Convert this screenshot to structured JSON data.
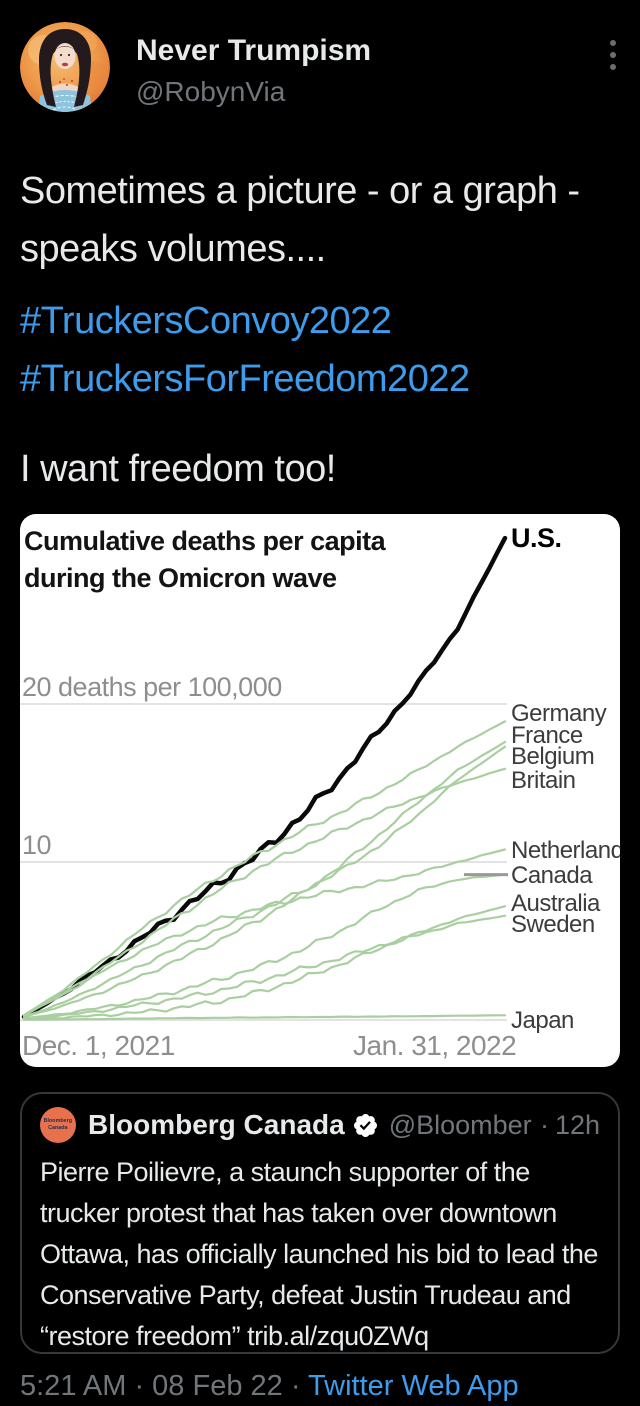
{
  "header": {
    "name": "Never Trumpism",
    "handle": "@RobynVia"
  },
  "tweet": {
    "text_line": "Sometimes a picture - or a graph - speaks volumes....",
    "hashtags": [
      "#TruckersConvoy2022",
      "#TruckersForFreedom2022"
    ],
    "closing_line": "I want freedom too!"
  },
  "quote": {
    "name": "Bloomberg Canada",
    "handle": "@Bloomberg…",
    "separator": "·",
    "time": "12h",
    "avatar_line1": "Bloomberg",
    "avatar_line2": "Canada",
    "text": "Pierre Poilievre, a staunch supporter of the trucker protest that has taken over downtown Ottawa, has officially launched his bid to lead the Conservative Party, defeat Justin Trudeau and “restore freedom” trib.al/zqu0ZWq"
  },
  "footer": {
    "meta": "5:21 AM · 08 Feb 22 ·",
    "source_link": "Twitter Web App"
  },
  "colors": {
    "background": "#000000",
    "text_primary": "#e7e9ea",
    "text_secondary": "#71767b",
    "link_blue": "#3d9ceb",
    "card_border": "#33383c",
    "chart_background": "#ffffff",
    "chart_green": "#a9cfa0",
    "chart_black": "#0a0a0a",
    "chart_gridline": "#e3e3e3",
    "chart_axis_text": "#8e8e8e",
    "chart_label_text": "#3c3c3c",
    "quote_avatar_orange": "#e8714d"
  },
  "chart_data": {
    "type": "line",
    "title_lines": [
      "Cumulative deaths per capita",
      "during the Omicron wave"
    ],
    "title": "Cumulative deaths per capita during the Omicron wave",
    "unit_axis_label": "20 deaths per 100,000",
    "mid_axis_label": "10",
    "x_axis_labels": [
      "Dec. 1, 2021",
      "Jan. 31, 2022"
    ],
    "x_range_days": [
      0,
      61
    ],
    "ylim": [
      0,
      32
    ],
    "gridline_values": [
      0,
      10,
      20
    ],
    "grid": "horizontal-only",
    "legend_position": "right-end-labels",
    "ylabel": "cumulative deaths per 100,000",
    "days": [
      0,
      5,
      10,
      15,
      20,
      25,
      30,
      35,
      40,
      45,
      50,
      55,
      61
    ],
    "series": [
      {
        "name": "U.S.",
        "color": "#0a0a0a",
        "width": 4.5,
        "bold_label": true,
        "values": [
          0.2,
          1.7,
          3.4,
          5.2,
          7.0,
          8.8,
          10.6,
          12.8,
          15.3,
          18.3,
          21.3,
          24.8,
          30.5
        ]
      },
      {
        "name": "Germany",
        "color": "#a9cfa0",
        "width": 2.2,
        "values": [
          0.3,
          1.9,
          3.8,
          5.8,
          7.6,
          9.2,
          10.6,
          11.9,
          13.1,
          14.4,
          15.8,
          17.3,
          18.9
        ]
      },
      {
        "name": "France",
        "color": "#a9cfa0",
        "width": 2.2,
        "values": [
          0.2,
          0.9,
          1.8,
          2.8,
          3.9,
          5.1,
          6.4,
          7.9,
          9.7,
          11.7,
          13.8,
          15.8,
          17.6
        ]
      },
      {
        "name": "Belgium",
        "color": "#a9cfa0",
        "width": 2.2,
        "values": [
          0.2,
          1.1,
          2.3,
          3.5,
          4.7,
          5.8,
          6.9,
          8.1,
          9.4,
          11.0,
          13.0,
          15.2,
          17.3
        ]
      },
      {
        "name": "Britain",
        "color": "#a9cfa0",
        "width": 2.2,
        "values": [
          0.3,
          1.7,
          3.3,
          5.0,
          6.7,
          8.3,
          9.7,
          10.9,
          12.0,
          13.1,
          14.1,
          15.0,
          15.9
        ]
      },
      {
        "name": "Netherlands",
        "color": "#a9cfa0",
        "width": 2.2,
        "values": [
          0.3,
          1.6,
          3.1,
          4.4,
          5.5,
          6.4,
          7.1,
          7.7,
          8.2,
          8.7,
          9.3,
          10.0,
          10.8
        ]
      },
      {
        "name": "Canada",
        "color": "#a9cfa0",
        "width": 2.2,
        "leader_line": true,
        "values": [
          0.1,
          0.4,
          0.8,
          1.3,
          1.9,
          2.6,
          3.4,
          4.4,
          5.6,
          7.0,
          8.2,
          8.9,
          9.2
        ]
      },
      {
        "name": "Australia",
        "color": "#a9cfa0",
        "width": 2.2,
        "values": [
          0.05,
          0.15,
          0.3,
          0.5,
          0.8,
          1.2,
          1.8,
          2.6,
          3.5,
          4.5,
          5.5,
          6.4,
          7.2
        ]
      },
      {
        "name": "Sweden",
        "color": "#a9cfa0",
        "width": 2.2,
        "values": [
          0.1,
          0.3,
          0.6,
          1.0,
          1.4,
          1.9,
          2.5,
          3.2,
          3.9,
          4.7,
          5.4,
          6.1,
          6.6
        ]
      },
      {
        "name": "Japan",
        "color": "#a9cfa0",
        "width": 2.2,
        "values": [
          0.02,
          0.04,
          0.06,
          0.09,
          0.12,
          0.14,
          0.16,
          0.18,
          0.2,
          0.22,
          0.24,
          0.27,
          0.3
        ]
      }
    ]
  }
}
